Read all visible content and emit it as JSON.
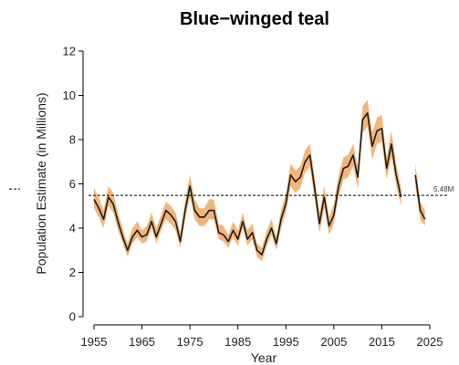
{
  "chart_data": {
    "type": "line",
    "title": "Blue−winged teal",
    "xlabel": "Year",
    "ylabel": "Population Estimate (in Millions)",
    "xlim": [
      1955,
      2025
    ],
    "ylim": [
      0,
      12
    ],
    "xticks": [
      "1955",
      "1965",
      "1975",
      "1985",
      "1995",
      "2005",
      "2015",
      "2025"
    ],
    "yticks": [
      "0",
      "2",
      "4",
      "6",
      "8",
      "10",
      "12"
    ],
    "reference_line": {
      "value": 5.48,
      "label": "5.48M",
      "style": "dashed"
    },
    "grid": false,
    "legend": "none",
    "colors": {
      "line": "#1a1a1a",
      "band": "#f0a860",
      "reference": "#000000"
    },
    "series": [
      {
        "x": [
          1955,
          1956,
          1957,
          1958,
          1959,
          1960,
          1961,
          1962,
          1963,
          1964,
          1965,
          1966,
          1967,
          1968,
          1969,
          1970,
          1971,
          1972,
          1973,
          1974,
          1975,
          1976,
          1977,
          1978,
          1979,
          1980,
          1981,
          1982,
          1983,
          1984,
          1985,
          1986,
          1987,
          1988,
          1989,
          1990,
          1991,
          1992,
          1993,
          1994,
          1995,
          1996,
          1997,
          1998,
          1999,
          2000,
          2001,
          2002,
          2003,
          2004,
          2005,
          2006,
          2007,
          2008,
          2009,
          2010,
          2011,
          2012,
          2013,
          2014,
          2015,
          2016,
          2017,
          2018,
          2019,
          2020,
          2021,
          2022,
          2023,
          2024
        ],
        "y": [
          5.3,
          4.9,
          4.4,
          5.4,
          5.1,
          4.3,
          3.6,
          3.0,
          3.6,
          3.9,
          3.6,
          3.7,
          4.3,
          3.6,
          4.2,
          4.8,
          4.6,
          4.3,
          3.4,
          4.8,
          5.9,
          4.8,
          4.5,
          4.5,
          4.8,
          4.8,
          3.8,
          3.7,
          3.4,
          3.9,
          3.5,
          4.3,
          3.5,
          3.8,
          3.0,
          2.8,
          3.5,
          4.0,
          3.3,
          4.4,
          5.1,
          6.4,
          6.1,
          6.3,
          7.0,
          7.3,
          5.8,
          4.2,
          5.4,
          4.1,
          4.6,
          5.9,
          6.7,
          6.8,
          7.3,
          6.3,
          8.9,
          9.2,
          7.7,
          8.4,
          8.5,
          6.7,
          7.8,
          6.4,
          5.4,
          null,
          null,
          6.4,
          4.8,
          4.4
        ],
        "lower": [
          4.9,
          4.5,
          4.0,
          5.0,
          4.7,
          3.9,
          3.3,
          2.7,
          3.3,
          3.6,
          3.3,
          3.4,
          4.0,
          3.3,
          3.9,
          4.4,
          4.2,
          3.9,
          3.1,
          4.4,
          5.4,
          4.4,
          4.1,
          4.1,
          4.4,
          4.4,
          3.5,
          3.4,
          3.1,
          3.6,
          3.2,
          4.0,
          3.2,
          3.5,
          2.7,
          2.5,
          3.2,
          3.7,
          3.0,
          4.0,
          4.7,
          5.9,
          5.6,
          5.8,
          6.5,
          6.8,
          5.3,
          3.8,
          4.9,
          3.7,
          4.2,
          5.4,
          6.2,
          6.3,
          6.8,
          5.8,
          8.3,
          8.6,
          7.1,
          7.8,
          7.9,
          6.2,
          7.2,
          5.9,
          5.0,
          null,
          null,
          5.9,
          4.4,
          4.1
        ],
        "upper": [
          5.8,
          5.4,
          4.8,
          5.9,
          5.6,
          4.7,
          4.0,
          3.3,
          4.0,
          4.3,
          3.9,
          4.1,
          4.7,
          4.0,
          4.6,
          5.2,
          5.0,
          4.7,
          3.8,
          5.2,
          6.4,
          5.3,
          4.9,
          4.9,
          5.3,
          5.3,
          4.2,
          4.1,
          3.7,
          4.3,
          3.9,
          4.7,
          3.9,
          4.2,
          3.3,
          3.1,
          3.9,
          4.4,
          3.6,
          4.8,
          5.6,
          6.9,
          6.6,
          6.8,
          7.5,
          7.8,
          6.3,
          4.7,
          5.9,
          4.5,
          5.1,
          6.4,
          7.2,
          7.3,
          7.8,
          6.8,
          9.5,
          9.8,
          8.3,
          9.0,
          9.1,
          7.2,
          8.4,
          6.9,
          5.8,
          null,
          null,
          6.9,
          5.2,
          4.8
        ]
      }
    ]
  }
}
